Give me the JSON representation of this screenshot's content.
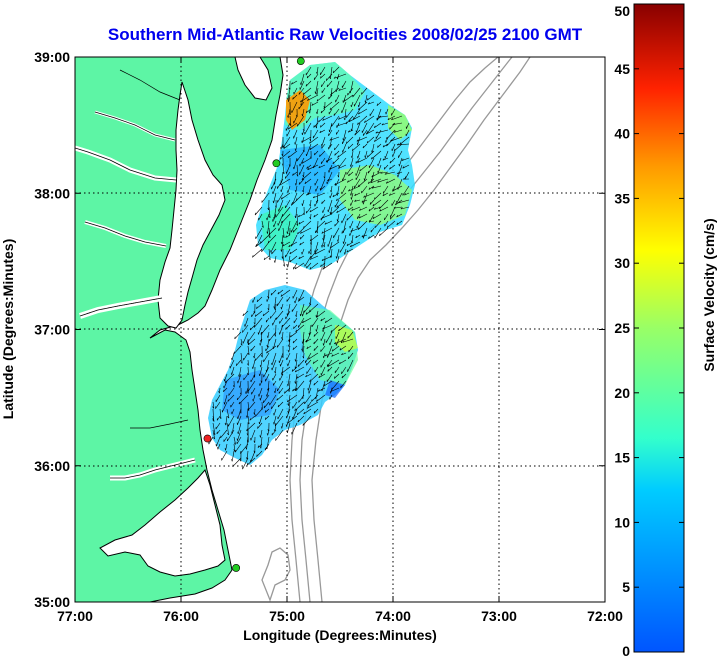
{
  "title": "Southern Mid-Atlantic Raw Velocities 2008/02/25 2100 GMT",
  "chart_data": {
    "type": "map",
    "xlabel": "Longitude (Degrees:Minutes)",
    "ylabel": "Latitude (Degrees:Minutes)",
    "x_range": [
      -77,
      -72
    ],
    "y_range": [
      35,
      39
    ],
    "x_ticks": [
      {
        "value": -77,
        "label": "77:00"
      },
      {
        "value": -76,
        "label": "76:00"
      },
      {
        "value": -75,
        "label": "75:00"
      },
      {
        "value": -74,
        "label": "74:00"
      },
      {
        "value": -73,
        "label": "73:00"
      },
      {
        "value": -72,
        "label": "72:00"
      }
    ],
    "y_ticks": [
      {
        "value": 35,
        "label": "35:00"
      },
      {
        "value": 36,
        "label": "36:00"
      },
      {
        "value": 37,
        "label": "37:00"
      },
      {
        "value": 38,
        "label": "38:00"
      },
      {
        "value": 39,
        "label": "39:00"
      }
    ],
    "grid": "dotted",
    "colorbar": {
      "label": "Surface Velocity (cm/s)",
      "range": [
        0,
        50
      ],
      "ticks": [
        {
          "value": 0,
          "label": "0"
        },
        {
          "value": 5,
          "label": "5"
        },
        {
          "value": 10,
          "label": "10"
        },
        {
          "value": 15,
          "label": "15"
        },
        {
          "value": 20,
          "label": "20"
        },
        {
          "value": 25,
          "label": "25"
        },
        {
          "value": 30,
          "label": "30"
        },
        {
          "value": 35,
          "label": "35"
        },
        {
          "value": 40,
          "label": "40"
        },
        {
          "value": 45,
          "label": "45"
        },
        {
          "value": 50,
          "label": "50"
        }
      ]
    },
    "stations": [
      {
        "lon": -74.87,
        "lat": 38.97,
        "color": "#22cc22"
      },
      {
        "lon": -75.1,
        "lat": 38.22,
        "color": "#22cc22"
      },
      {
        "lon": -75.75,
        "lat": 36.2,
        "color": "#ee2222"
      },
      {
        "lon": -75.48,
        "lat": 35.25,
        "color": "#22cc22"
      }
    ]
  },
  "colors": {
    "title": "#0000ee",
    "land": "#5df5a5",
    "coast": "#000000",
    "bathymetry": "#999999",
    "grid": "#000000"
  }
}
